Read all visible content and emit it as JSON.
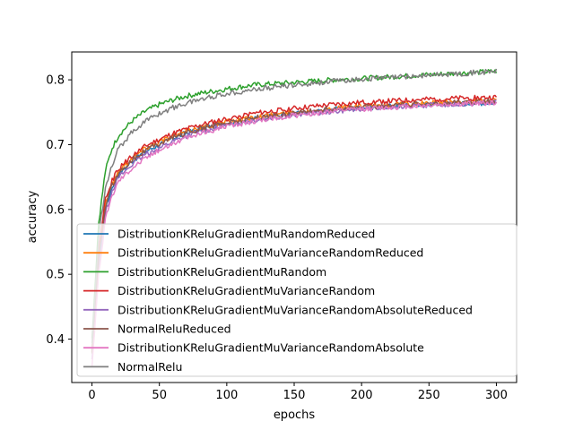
{
  "chart_data": {
    "type": "line",
    "title": "",
    "xlabel": "epochs",
    "ylabel": "accuracy",
    "xlim": [
      -15,
      315
    ],
    "ylim": [
      0.333,
      0.843
    ],
    "xticks": [
      0,
      50,
      100,
      150,
      200,
      250,
      300
    ],
    "yticks": [
      0.4,
      0.5,
      0.6,
      0.7,
      0.8
    ],
    "ytick_labels": [
      "0.4",
      "0.5",
      "0.6",
      "0.7",
      "0.8"
    ],
    "grid": false,
    "legend_position": "lower-right",
    "x_sample_epochs": [
      0,
      5,
      10,
      15,
      20,
      30,
      40,
      50,
      60,
      70,
      80,
      100,
      120,
      150,
      180,
      200,
      250,
      300
    ],
    "series": [
      {
        "name": "DistributionKReluGradientMuRandomReduced",
        "color": "#1f77b4",
        "values": [
          0.38,
          0.52,
          0.6,
          0.635,
          0.655,
          0.675,
          0.69,
          0.7,
          0.71,
          0.718,
          0.724,
          0.733,
          0.74,
          0.748,
          0.754,
          0.757,
          0.762,
          0.765
        ]
      },
      {
        "name": "DistributionKReluGradientMuVarianceRandomReduced",
        "color": "#ff7f0e",
        "values": [
          0.38,
          0.53,
          0.61,
          0.64,
          0.66,
          0.68,
          0.695,
          0.705,
          0.713,
          0.72,
          0.726,
          0.735,
          0.742,
          0.75,
          0.756,
          0.759,
          0.764,
          0.768
        ]
      },
      {
        "name": "DistributionKReluGradientMuRandom",
        "color": "#2ca02c",
        "values": [
          0.4,
          0.58,
          0.66,
          0.695,
          0.715,
          0.737,
          0.752,
          0.762,
          0.769,
          0.775,
          0.779,
          0.786,
          0.792,
          0.796,
          0.8,
          0.802,
          0.808,
          0.813
        ]
      },
      {
        "name": "DistributionKReluGradientMuVarianceRandom",
        "color": "#d62728",
        "values": [
          0.38,
          0.54,
          0.615,
          0.645,
          0.663,
          0.683,
          0.698,
          0.708,
          0.717,
          0.724,
          0.73,
          0.74,
          0.748,
          0.756,
          0.762,
          0.765,
          0.77,
          0.773
        ]
      },
      {
        "name": "DistributionKReluGradientMuVarianceRandomAbsoluteReduced",
        "color": "#9467bd",
        "values": [
          0.37,
          0.51,
          0.595,
          0.63,
          0.65,
          0.67,
          0.685,
          0.695,
          0.705,
          0.713,
          0.72,
          0.73,
          0.738,
          0.746,
          0.752,
          0.755,
          0.761,
          0.765
        ]
      },
      {
        "name": "NormalReluReduced",
        "color": "#8c564b",
        "values": [
          0.38,
          0.525,
          0.605,
          0.637,
          0.657,
          0.677,
          0.692,
          0.702,
          0.711,
          0.718,
          0.724,
          0.734,
          0.741,
          0.749,
          0.755,
          0.758,
          0.763,
          0.767
        ]
      },
      {
        "name": "DistributionKReluGradientMuVarianceRandomAbsolute",
        "color": "#e377c2",
        "values": [
          0.36,
          0.5,
          0.585,
          0.622,
          0.645,
          0.665,
          0.68,
          0.692,
          0.702,
          0.71,
          0.717,
          0.728,
          0.736,
          0.745,
          0.752,
          0.755,
          0.761,
          0.765
        ]
      },
      {
        "name": "NormalRelu",
        "color": "#7f7f7f",
        "values": [
          0.39,
          0.56,
          0.635,
          0.67,
          0.695,
          0.72,
          0.737,
          0.748,
          0.757,
          0.764,
          0.77,
          0.779,
          0.785,
          0.792,
          0.798,
          0.801,
          0.807,
          0.813
        ]
      }
    ]
  }
}
